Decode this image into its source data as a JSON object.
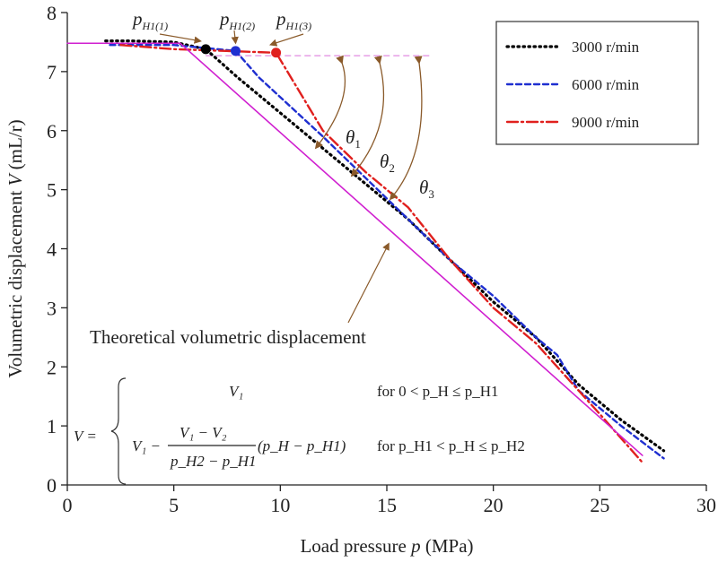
{
  "chart_data": {
    "type": "line",
    "xlabel": "Load pressure p (MPa)",
    "xlabel_parts": [
      "Load pressure ",
      "p",
      " (MPa)"
    ],
    "ylabel": "Volumetric displacement V (mL/r)",
    "ylabel_parts": [
      "Volumetric displacement ",
      "V",
      " (mL/r)"
    ],
    "xlim": [
      0,
      30
    ],
    "ylim": [
      0,
      8
    ],
    "xticks": [
      "0",
      "5",
      "10",
      "15",
      "20",
      "25",
      "30"
    ],
    "yticks": [
      "0",
      "1",
      "2",
      "3",
      "4",
      "5",
      "6",
      "7",
      "8"
    ],
    "grid": false,
    "legend_position": "top-right",
    "series": [
      {
        "name": "3000 r/min",
        "color": "#000000",
        "style": "dotted",
        "x": [
          1.8,
          3,
          5,
          6.5,
          8,
          10,
          12,
          14,
          16,
          18,
          20,
          22,
          24,
          26,
          28
        ],
        "y": [
          7.52,
          7.52,
          7.5,
          7.38,
          6.9,
          6.3,
          5.7,
          5.1,
          4.5,
          3.8,
          3.1,
          2.5,
          1.7,
          1.1,
          0.58
        ]
      },
      {
        "name": "6000 r/min",
        "color": "#1f2fd0",
        "style": "dashed",
        "x": [
          2,
          5,
          7.9,
          9,
          10.5,
          12,
          14,
          16,
          18,
          20,
          22,
          23,
          24,
          26,
          28
        ],
        "y": [
          7.45,
          7.45,
          7.35,
          6.9,
          6.4,
          5.9,
          5.2,
          4.5,
          3.8,
          3.2,
          2.5,
          2.2,
          1.6,
          1.0,
          0.45
        ]
      },
      {
        "name": "9000 r/min",
        "color": "#e0201e",
        "style": "dashdot",
        "x": [
          2.5,
          5,
          9.8,
          11,
          12,
          14,
          16,
          18,
          20,
          22,
          24,
          25,
          27
        ],
        "y": [
          7.45,
          7.38,
          7.32,
          6.6,
          6.0,
          5.3,
          4.7,
          3.8,
          3.0,
          2.4,
          1.6,
          1.2,
          0.38
        ]
      },
      {
        "name": "Theoretical volumetric displacement",
        "color": "#d020d0",
        "style": "solid",
        "x": [
          0,
          5.3,
          27
        ],
        "y": [
          7.48,
          7.48,
          0.5
        ]
      }
    ],
    "reference_line": {
      "y": 7.27,
      "x": [
        6.5,
        17
      ],
      "color": "#e08ae0"
    },
    "markers": [
      {
        "label": "p",
        "sub": "H1(1)",
        "x": 6.5,
        "y": 7.38,
        "color": "#000000"
      },
      {
        "label": "p",
        "sub": "H1(2)",
        "x": 7.9,
        "y": 7.35,
        "color": "#1f2fd0"
      },
      {
        "label": "p",
        "sub": "H1(3)",
        "x": 9.8,
        "y": 7.32,
        "color": "#e0201e"
      }
    ],
    "angles": [
      {
        "label": "θ",
        "sub": "1"
      },
      {
        "label": "θ",
        "sub": "2"
      },
      {
        "label": "θ",
        "sub": "3"
      }
    ],
    "annotation": "Theoretical volumetric displacement",
    "formula": {
      "lhs": "V =",
      "case1": "V₁",
      "case1_cond": "for  0 < p_H ≤ p_H1",
      "case2_left": "V₁ −",
      "case2_num": "V₁ − V₂",
      "case2_den": "p_H2 − p_H1",
      "case2_right": "(p_H − p_H1)",
      "case2_cond": "for  p_H1 < p_H ≤ p_H2"
    }
  }
}
